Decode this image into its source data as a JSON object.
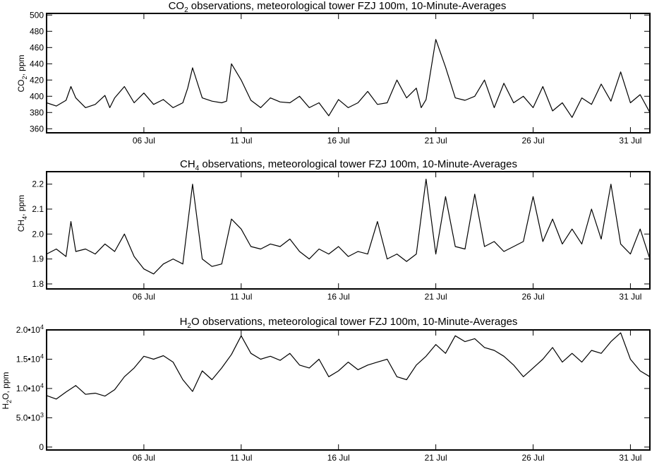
{
  "figure": {
    "background": "#ffffff",
    "line_color": "#000000"
  },
  "chart_data": [
    {
      "type": "line",
      "title_main": "CO",
      "title_sub": "2",
      "title_rest": " observations, meteorological tower FZJ 100m, 10-Minute-Averages",
      "ylabel_main": "CO",
      "ylabel_sub": "2",
      "ylabel_rest": ", ppm",
      "xlabel": "",
      "xlim": [
        "2017-07-01",
        "2017-08-01"
      ],
      "ylim": [
        355,
        502
      ],
      "x_ticks": [
        {
          "date": "2017-07-06",
          "label": "06 Jul"
        },
        {
          "date": "2017-07-11",
          "label": "11 Jul"
        },
        {
          "date": "2017-07-16",
          "label": "16 Jul"
        },
        {
          "date": "2017-07-21",
          "label": "21 Jul"
        },
        {
          "date": "2017-07-26",
          "label": "26 Jul"
        },
        {
          "date": "2017-07-31",
          "label": "31 Jul"
        }
      ],
      "y_ticks": [
        {
          "value": 360,
          "label": "360"
        },
        {
          "value": 380,
          "label": "380"
        },
        {
          "value": 400,
          "label": "400"
        },
        {
          "value": 420,
          "label": "420"
        },
        {
          "value": 440,
          "label": "440"
        },
        {
          "value": 460,
          "label": "460"
        },
        {
          "value": 480,
          "label": "480"
        },
        {
          "value": 500,
          "label": "500"
        }
      ],
      "series": [
        {
          "x": [
            "2017-07-01 00:00",
            "2017-07-01 12:00",
            "2017-07-02 00:00",
            "2017-07-02 06:00",
            "2017-07-02 12:00",
            "2017-07-03 00:00",
            "2017-07-03 12:00",
            "2017-07-04 00:00",
            "2017-07-04 06:00",
            "2017-07-04 12:00",
            "2017-07-05 00:00",
            "2017-07-05 12:00",
            "2017-07-06 00:00",
            "2017-07-06 12:00",
            "2017-07-07 00:00",
            "2017-07-07 12:00",
            "2017-07-08 00:00",
            "2017-07-08 06:00",
            "2017-07-08 12:00",
            "2017-07-09 00:00",
            "2017-07-09 12:00",
            "2017-07-10 00:00",
            "2017-07-10 06:00",
            "2017-07-10 12:00",
            "2017-07-11 00:00",
            "2017-07-11 12:00",
            "2017-07-12 00:00",
            "2017-07-12 12:00",
            "2017-07-13 00:00",
            "2017-07-13 12:00",
            "2017-07-14 00:00",
            "2017-07-14 12:00",
            "2017-07-15 00:00",
            "2017-07-15 12:00",
            "2017-07-16 00:00",
            "2017-07-16 12:00",
            "2017-07-17 00:00",
            "2017-07-17 12:00",
            "2017-07-18 00:00",
            "2017-07-18 12:00",
            "2017-07-19 00:00",
            "2017-07-19 12:00",
            "2017-07-20 00:00",
            "2017-07-20 06:00",
            "2017-07-20 12:00",
            "2017-07-21 00:00",
            "2017-07-21 12:00",
            "2017-07-22 00:00",
            "2017-07-22 12:00",
            "2017-07-23 00:00",
            "2017-07-23 12:00",
            "2017-07-24 00:00",
            "2017-07-24 12:00",
            "2017-07-25 00:00",
            "2017-07-25 12:00",
            "2017-07-26 00:00",
            "2017-07-26 12:00",
            "2017-07-27 00:00",
            "2017-07-27 12:00",
            "2017-07-28 00:00",
            "2017-07-28 12:00",
            "2017-07-29 00:00",
            "2017-07-29 12:00",
            "2017-07-30 00:00",
            "2017-07-30 12:00",
            "2017-07-31 00:00",
            "2017-07-31 12:00",
            "2017-08-01 00:00"
          ],
          "y": [
            392,
            388,
            395,
            412,
            398,
            386,
            390,
            401,
            386,
            398,
            412,
            392,
            404,
            390,
            396,
            386,
            392,
            410,
            435,
            398,
            394,
            392,
            394,
            440,
            420,
            395,
            386,
            398,
            393,
            392,
            400,
            386,
            392,
            376,
            396,
            386,
            392,
            406,
            390,
            392,
            420,
            398,
            410,
            386,
            396,
            470,
            436,
            398,
            395,
            400,
            420,
            386,
            416,
            392,
            400,
            386,
            412,
            382,
            392,
            374,
            398,
            390,
            415,
            394,
            430,
            392,
            402,
            380
          ]
        }
      ]
    },
    {
      "type": "line",
      "title_main": "CH",
      "title_sub": "4",
      "title_rest": " observations, meteorological tower FZJ 100m, 10-Minute-Averages",
      "ylabel_main": "CH",
      "ylabel_sub": "4",
      "ylabel_rest": ", ppm",
      "xlabel": "",
      "xlim": [
        "2017-07-01",
        "2017-08-01"
      ],
      "ylim": [
        1.78,
        2.25
      ],
      "x_ticks": [
        {
          "date": "2017-07-06",
          "label": "06 Jul"
        },
        {
          "date": "2017-07-11",
          "label": "11 Jul"
        },
        {
          "date": "2017-07-16",
          "label": "16 Jul"
        },
        {
          "date": "2017-07-21",
          "label": "21 Jul"
        },
        {
          "date": "2017-07-26",
          "label": "26 Jul"
        },
        {
          "date": "2017-07-31",
          "label": "31 Jul"
        }
      ],
      "y_ticks": [
        {
          "value": 1.8,
          "label": "1.8"
        },
        {
          "value": 1.9,
          "label": "1.9"
        },
        {
          "value": 2.0,
          "label": "2.0"
        },
        {
          "value": 2.1,
          "label": "2.1"
        },
        {
          "value": 2.2,
          "label": "2.2"
        }
      ],
      "series": [
        {
          "x": [
            "2017-07-01 00:00",
            "2017-07-01 12:00",
            "2017-07-02 00:00",
            "2017-07-02 06:00",
            "2017-07-02 12:00",
            "2017-07-03 00:00",
            "2017-07-03 12:00",
            "2017-07-04 00:00",
            "2017-07-04 12:00",
            "2017-07-05 00:00",
            "2017-07-05 12:00",
            "2017-07-06 00:00",
            "2017-07-06 12:00",
            "2017-07-07 00:00",
            "2017-07-07 12:00",
            "2017-07-08 00:00",
            "2017-07-08 12:00",
            "2017-07-09 00:00",
            "2017-07-09 12:00",
            "2017-07-10 00:00",
            "2017-07-10 12:00",
            "2017-07-11 00:00",
            "2017-07-11 12:00",
            "2017-07-12 00:00",
            "2017-07-12 12:00",
            "2017-07-13 00:00",
            "2017-07-13 12:00",
            "2017-07-14 00:00",
            "2017-07-14 12:00",
            "2017-07-15 00:00",
            "2017-07-15 12:00",
            "2017-07-16 00:00",
            "2017-07-16 12:00",
            "2017-07-17 00:00",
            "2017-07-17 12:00",
            "2017-07-18 00:00",
            "2017-07-18 12:00",
            "2017-07-19 00:00",
            "2017-07-19 12:00",
            "2017-07-20 00:00",
            "2017-07-20 12:00",
            "2017-07-21 00:00",
            "2017-07-21 12:00",
            "2017-07-22 00:00",
            "2017-07-22 12:00",
            "2017-07-23 00:00",
            "2017-07-23 12:00",
            "2017-07-24 00:00",
            "2017-07-24 12:00",
            "2017-07-25 00:00",
            "2017-07-25 12:00",
            "2017-07-26 00:00",
            "2017-07-26 12:00",
            "2017-07-27 00:00",
            "2017-07-27 12:00",
            "2017-07-28 00:00",
            "2017-07-28 12:00",
            "2017-07-29 00:00",
            "2017-07-29 12:00",
            "2017-07-30 00:00",
            "2017-07-30 12:00",
            "2017-07-31 00:00",
            "2017-07-31 12:00",
            "2017-08-01 00:00"
          ],
          "y": [
            1.92,
            1.94,
            1.91,
            2.05,
            1.93,
            1.94,
            1.92,
            1.96,
            1.93,
            2.0,
            1.91,
            1.86,
            1.84,
            1.88,
            1.9,
            1.88,
            2.2,
            1.9,
            1.87,
            1.88,
            2.06,
            2.02,
            1.95,
            1.94,
            1.96,
            1.95,
            1.98,
            1.93,
            1.9,
            1.94,
            1.92,
            1.95,
            1.91,
            1.93,
            1.92,
            2.05,
            1.9,
            1.92,
            1.89,
            1.92,
            2.22,
            1.92,
            2.15,
            1.95,
            1.94,
            2.16,
            1.95,
            1.97,
            1.93,
            1.95,
            1.97,
            2.15,
            1.97,
            2.06,
            1.96,
            2.02,
            1.96,
            2.1,
            1.98,
            2.2,
            1.96,
            1.92,
            2.02,
            1.9
          ]
        }
      ]
    },
    {
      "type": "line",
      "title_main": "H",
      "title_sub": "2",
      "title_rest": "O observations, meteorological tower FZJ 100m, 10-Minute-Averages",
      "ylabel_main": "H",
      "ylabel_sub": "2",
      "ylabel_rest": "O, ppm",
      "xlabel": "",
      "xlim": [
        "2017-07-01",
        "2017-08-01"
      ],
      "ylim": [
        -500,
        20000
      ],
      "x_ticks": [
        {
          "date": "2017-07-06",
          "label": "06 Jul"
        },
        {
          "date": "2017-07-11",
          "label": "11 Jul"
        },
        {
          "date": "2017-07-16",
          "label": "16 Jul"
        },
        {
          "date": "2017-07-21",
          "label": "21 Jul"
        },
        {
          "date": "2017-07-26",
          "label": "26 Jul"
        },
        {
          "date": "2017-07-31",
          "label": "31 Jul"
        }
      ],
      "y_ticks": [
        {
          "value": 0,
          "mantissa": "0",
          "exp": ""
        },
        {
          "value": 5000,
          "mantissa": "5.0•10",
          "exp": "3"
        },
        {
          "value": 10000,
          "mantissa": "1.0•10",
          "exp": "4"
        },
        {
          "value": 15000,
          "mantissa": "1.5•10",
          "exp": "4"
        },
        {
          "value": 20000,
          "mantissa": "2.0•10",
          "exp": "4"
        }
      ],
      "series": [
        {
          "x": [
            "2017-07-01 00:00",
            "2017-07-01 12:00",
            "2017-07-02 00:00",
            "2017-07-02 12:00",
            "2017-07-03 00:00",
            "2017-07-03 12:00",
            "2017-07-04 00:00",
            "2017-07-04 12:00",
            "2017-07-05 00:00",
            "2017-07-05 12:00",
            "2017-07-06 00:00",
            "2017-07-06 12:00",
            "2017-07-07 00:00",
            "2017-07-07 12:00",
            "2017-07-08 00:00",
            "2017-07-08 12:00",
            "2017-07-09 00:00",
            "2017-07-09 12:00",
            "2017-07-10 00:00",
            "2017-07-10 12:00",
            "2017-07-11 00:00",
            "2017-07-11 12:00",
            "2017-07-12 00:00",
            "2017-07-12 12:00",
            "2017-07-13 00:00",
            "2017-07-13 12:00",
            "2017-07-14 00:00",
            "2017-07-14 12:00",
            "2017-07-15 00:00",
            "2017-07-15 12:00",
            "2017-07-16 00:00",
            "2017-07-16 12:00",
            "2017-07-17 00:00",
            "2017-07-17 12:00",
            "2017-07-18 00:00",
            "2017-07-18 12:00",
            "2017-07-19 00:00",
            "2017-07-19 12:00",
            "2017-07-20 00:00",
            "2017-07-20 12:00",
            "2017-07-21 00:00",
            "2017-07-21 12:00",
            "2017-07-22 00:00",
            "2017-07-22 12:00",
            "2017-07-23 00:00",
            "2017-07-23 12:00",
            "2017-07-24 00:00",
            "2017-07-24 12:00",
            "2017-07-25 00:00",
            "2017-07-25 12:00",
            "2017-07-26 00:00",
            "2017-07-26 12:00",
            "2017-07-27 00:00",
            "2017-07-27 12:00",
            "2017-07-28 00:00",
            "2017-07-28 12:00",
            "2017-07-29 00:00",
            "2017-07-29 12:00",
            "2017-07-30 00:00",
            "2017-07-30 12:00",
            "2017-07-31 00:00",
            "2017-07-31 12:00",
            "2017-08-01 00:00"
          ],
          "y": [
            8800,
            8200,
            9400,
            10500,
            9000,
            9200,
            8700,
            9800,
            12000,
            13500,
            15500,
            15000,
            15600,
            14500,
            11500,
            9500,
            13000,
            11500,
            13500,
            15800,
            19000,
            16000,
            15000,
            15500,
            14800,
            16000,
            14000,
            13500,
            15000,
            12000,
            13000,
            14500,
            13200,
            14000,
            14500,
            15000,
            12000,
            11500,
            14000,
            15500,
            17500,
            16000,
            19000,
            18000,
            18500,
            17000,
            16500,
            15500,
            14000,
            12000,
            13500,
            15000,
            17000,
            14500,
            16000,
            14500,
            16500,
            16000,
            18000,
            19500,
            15000,
            13000,
            12000
          ]
        }
      ]
    }
  ]
}
